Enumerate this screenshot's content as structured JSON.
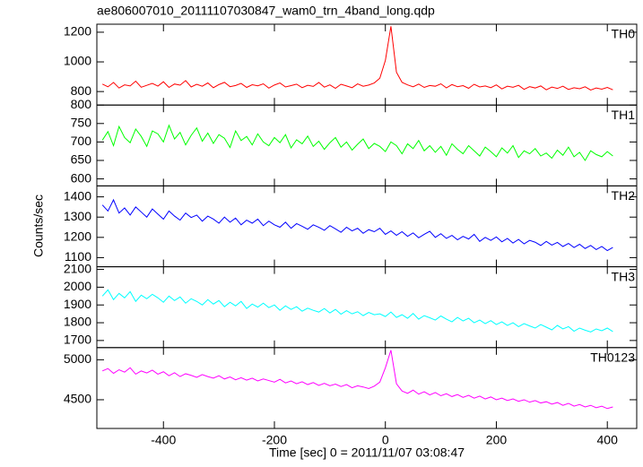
{
  "chart_data": {
    "type": "line",
    "title": "ae806007010_20111107030847_wam0_trn_4band_long.qdp",
    "x_label": "Time [sec] 0 = 2011/11/07 03:08:47",
    "y_label": "Counts/sec",
    "xlim": [
      -520,
      453
    ],
    "xticks": [
      -400,
      -200,
      0,
      200,
      400
    ],
    "x": [
      -510,
      -500,
      -490,
      -480,
      -470,
      -460,
      -450,
      -440,
      -430,
      -420,
      -410,
      -400,
      -390,
      -380,
      -370,
      -360,
      -350,
      -340,
      -330,
      -320,
      -310,
      -300,
      -290,
      -280,
      -270,
      -260,
      -250,
      -240,
      -230,
      -220,
      -210,
      -200,
      -190,
      -180,
      -170,
      -160,
      -150,
      -140,
      -130,
      -120,
      -110,
      -100,
      -90,
      -80,
      -70,
      -60,
      -50,
      -40,
      -30,
      -20,
      -10,
      0,
      10,
      20,
      30,
      40,
      50,
      60,
      70,
      80,
      90,
      100,
      110,
      120,
      130,
      140,
      150,
      160,
      170,
      180,
      190,
      200,
      210,
      220,
      230,
      240,
      250,
      260,
      270,
      280,
      290,
      300,
      310,
      320,
      330,
      340,
      350,
      360,
      370,
      380,
      390,
      400,
      410
    ],
    "series": [
      {
        "name": "TH0",
        "color": "#ff0000",
        "ylim": [
          709,
          1254
        ],
        "yticks": [
          800,
          1000,
          1200
        ],
        "values": [
          850,
          832,
          861,
          824,
          845,
          838,
          870,
          829,
          842,
          855,
          837,
          866,
          828,
          851,
          843,
          874,
          831,
          849,
          836,
          858,
          826,
          847,
          862,
          833,
          841,
          855,
          828,
          846,
          839,
          852,
          823,
          844,
          858,
          831,
          840,
          850,
          826,
          842,
          835,
          861,
          830,
          845,
          822,
          849,
          838,
          826,
          852,
          836,
          844,
          858,
          890,
          1010,
          1240,
          930,
          862,
          845,
          832,
          850,
          828,
          841,
          836,
          852,
          825,
          847,
          833,
          840,
          822,
          849,
          831,
          838,
          826,
          845,
          818,
          836,
          829,
          842,
          815,
          833,
          824,
          838,
          812,
          830,
          821,
          836,
          814,
          826,
          819,
          832,
          810,
          824,
          816,
          828,
          812
        ]
      },
      {
        "name": "TH1",
        "color": "#00ff00",
        "ylim": [
          581,
          800
        ],
        "yticks": [
          600,
          650,
          700,
          750,
          800
        ],
        "values": [
          705,
          728,
          690,
          742,
          712,
          698,
          735,
          715,
          688,
          730,
          722,
          700,
          745,
          708,
          726,
          692,
          718,
          738,
          702,
          724,
          696,
          720,
          710,
          685,
          730,
          704,
          715,
          692,
          722,
          700,
          690,
          712,
          698,
          720,
          684,
          706,
          695,
          716,
          688,
          702,
          680,
          698,
          712,
          686,
          700,
          678,
          694,
          708,
          682,
          696,
          688,
          674,
          700,
          690,
          668,
          695,
          682,
          704,
          676,
          690,
          672,
          688,
          664,
          695,
          680,
          668,
          690,
          676,
          662,
          686,
          674,
          660,
          684,
          670,
          690,
          658,
          676,
          668,
          682,
          662,
          670,
          656,
          678,
          664,
          686,
          660,
          672,
          650,
          676,
          666,
          660,
          674,
          662
        ]
      },
      {
        "name": "TH2",
        "color": "#0000ff",
        "ylim": [
          1055,
          1454
        ],
        "yticks": [
          1100,
          1200,
          1300,
          1400
        ],
        "values": [
          1360,
          1330,
          1385,
          1320,
          1345,
          1310,
          1350,
          1325,
          1300,
          1340,
          1315,
          1290,
          1330,
          1305,
          1285,
          1320,
          1298,
          1310,
          1280,
          1305,
          1290,
          1270,
          1300,
          1275,
          1295,
          1262,
          1285,
          1270,
          1290,
          1258,
          1280,
          1262,
          1250,
          1275,
          1245,
          1268,
          1255,
          1240,
          1262,
          1250,
          1235,
          1258,
          1242,
          1225,
          1250,
          1232,
          1245,
          1220,
          1238,
          1228,
          1245,
          1215,
          1232,
          1210,
          1228,
          1205,
          1222,
          1198,
          1215,
          1230,
          1200,
          1218,
          1195,
          1210,
          1188,
          1205,
          1192,
          1215,
          1180,
          1200,
          1185,
          1202,
          1178,
          1195,
          1172,
          1190,
          1168,
          1185,
          1176,
          1160,
          1180,
          1162,
          1175,
          1155,
          1170,
          1150,
          1166,
          1145,
          1160,
          1140,
          1155,
          1135,
          1150
        ]
      },
      {
        "name": "TH3",
        "color": "#00ffff",
        "ylim": [
          1660,
          2115
        ],
        "yticks": [
          1700,
          1800,
          1900,
          2000,
          2100
        ],
        "values": [
          1950,
          1985,
          1930,
          1965,
          1940,
          1975,
          1920,
          1955,
          1935,
          1960,
          1940,
          1915,
          1950,
          1925,
          1945,
          1910,
          1935,
          1920,
          1900,
          1930,
          1905,
          1925,
          1890,
          1915,
          1895,
          1920,
          1880,
          1905,
          1888,
          1910,
          1885,
          1900,
          1870,
          1895,
          1875,
          1890,
          1865,
          1882,
          1870,
          1860,
          1880,
          1855,
          1875,
          1848,
          1868,
          1850,
          1862,
          1840,
          1858,
          1845,
          1850,
          1835,
          1860,
          1830,
          1845,
          1825,
          1852,
          1820,
          1840,
          1828,
          1815,
          1838,
          1820,
          1805,
          1830,
          1810,
          1825,
          1800,
          1815,
          1795,
          1812,
          1790,
          1805,
          1785,
          1800,
          1778,
          1795,
          1782,
          1770,
          1790,
          1775,
          1760,
          1785,
          1765,
          1778,
          1752,
          1770,
          1758,
          1748,
          1765,
          1755,
          1770,
          1750
        ]
      },
      {
        "name": "TH0123",
        "color": "#ff00ff",
        "ylim": [
          4141,
          5152
        ],
        "yticks": [
          4500,
          5000
        ],
        "values": [
          4860,
          4890,
          4830,
          4875,
          4845,
          4900,
          4820,
          4860,
          4835,
          4870,
          4820,
          4850,
          4800,
          4838,
          4790,
          4825,
          4805,
          4780,
          4815,
          4790,
          4770,
          4800,
          4760,
          4785,
          4750,
          4775,
          4745,
          4770,
          4735,
          4760,
          4740,
          4720,
          4755,
          4710,
          4735,
          4700,
          4725,
          4690,
          4715,
          4680,
          4705,
          4675,
          4695,
          4665,
          4690,
          4650,
          4675,
          4660,
          4640,
          4670,
          4720,
          4900,
          5120,
          4700,
          4610,
          4580,
          4620,
          4570,
          4600,
          4560,
          4590,
          4550,
          4575,
          4540,
          4565,
          4530,
          4555,
          4520,
          4545,
          4510,
          4535,
          4500,
          4520,
          4490,
          4510,
          4480,
          4500,
          4470,
          4490,
          4460,
          4475,
          4445,
          4465,
          4430,
          4455,
          4420,
          4440,
          4410,
          4430,
          4400,
          4420,
          4390,
          4410
        ]
      }
    ]
  }
}
